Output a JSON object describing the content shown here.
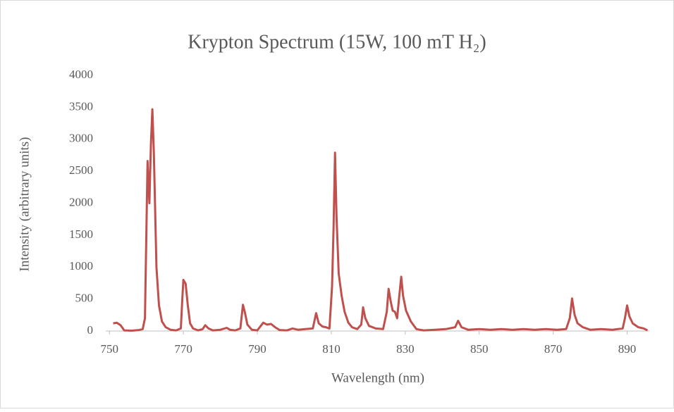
{
  "chart_data": {
    "type": "line",
    "title": "Krypton Spectrum (15W, 100 mT H₂)",
    "x_label": "Wavelength (nm)",
    "y_label": "Intensity (arbitrary units)",
    "x": [
      751,
      752,
      753,
      754,
      756,
      758,
      759,
      759.6,
      760.0,
      760.3,
      760.8,
      761.2,
      761.6,
      762.0,
      762.7,
      763.4,
      764.2,
      765.2,
      766.5,
      768,
      769.3,
      769.7,
      770.0,
      770.6,
      771.2,
      771.8,
      772.6,
      774,
      775.2,
      775.9,
      776.8,
      778,
      780,
      781.7,
      782.6,
      784,
      785.4,
      786.1,
      786.6,
      787.3,
      788.5,
      790,
      791.6,
      792.6,
      793.7,
      794.8,
      796,
      798,
      799.5,
      801,
      803,
      805.0,
      805.9,
      806.6,
      807.6,
      808.5,
      809.5,
      810.2,
      810.6,
      811.0,
      811.4,
      812,
      812.8,
      813.6,
      814.6,
      815.6,
      817,
      818.1,
      818.6,
      819.2,
      820.2,
      822,
      824,
      825.0,
      825.5,
      826.1,
      826.6,
      827.2,
      827.8,
      828.3,
      828.9,
      829.4,
      830.2,
      831.5,
      833,
      835,
      838,
      841,
      843.5,
      844.3,
      845.2,
      847,
      850,
      853,
      856,
      859,
      862,
      865,
      868,
      871,
      873.5,
      874.5,
      875.1,
      875.8,
      876.6,
      878,
      880,
      883,
      886,
      888.8,
      889.4,
      890.0,
      890.6,
      891.5,
      893,
      894.5,
      895.5
    ],
    "series": [
      {
        "name": "Intensity",
        "color": "#c0504d",
        "values": [
          120,
          130,
          90,
          10,
          5,
          15,
          30,
          200,
          1600,
          2660,
          2000,
          2900,
          3470,
          2800,
          1000,
          400,
          150,
          60,
          20,
          10,
          40,
          500,
          800,
          740,
          400,
          120,
          40,
          10,
          30,
          90,
          40,
          10,
          20,
          50,
          20,
          10,
          40,
          410,
          300,
          100,
          20,
          10,
          130,
          100,
          110,
          60,
          15,
          10,
          40,
          20,
          30,
          40,
          280,
          120,
          70,
          60,
          40,
          700,
          1600,
          2790,
          1800,
          900,
          550,
          300,
          130,
          60,
          30,
          100,
          370,
          200,
          80,
          40,
          30,
          300,
          660,
          450,
          320,
          300,
          200,
          500,
          850,
          550,
          320,
          150,
          30,
          10,
          20,
          30,
          60,
          160,
          60,
          20,
          30,
          20,
          30,
          20,
          30,
          20,
          30,
          20,
          30,
          200,
          510,
          250,
          120,
          60,
          20,
          30,
          20,
          40,
          200,
          400,
          230,
          120,
          60,
          40,
          10
        ]
      }
    ],
    "xlim": [
      749,
      896
    ],
    "xticks": [
      750,
      770,
      790,
      810,
      830,
      850,
      870,
      890
    ],
    "ylim": [
      0,
      4000
    ],
    "yticks": [
      0,
      500,
      1000,
      1500,
      2000,
      2500,
      3000,
      3500,
      4000
    ],
    "grid": false,
    "legend": false
  }
}
